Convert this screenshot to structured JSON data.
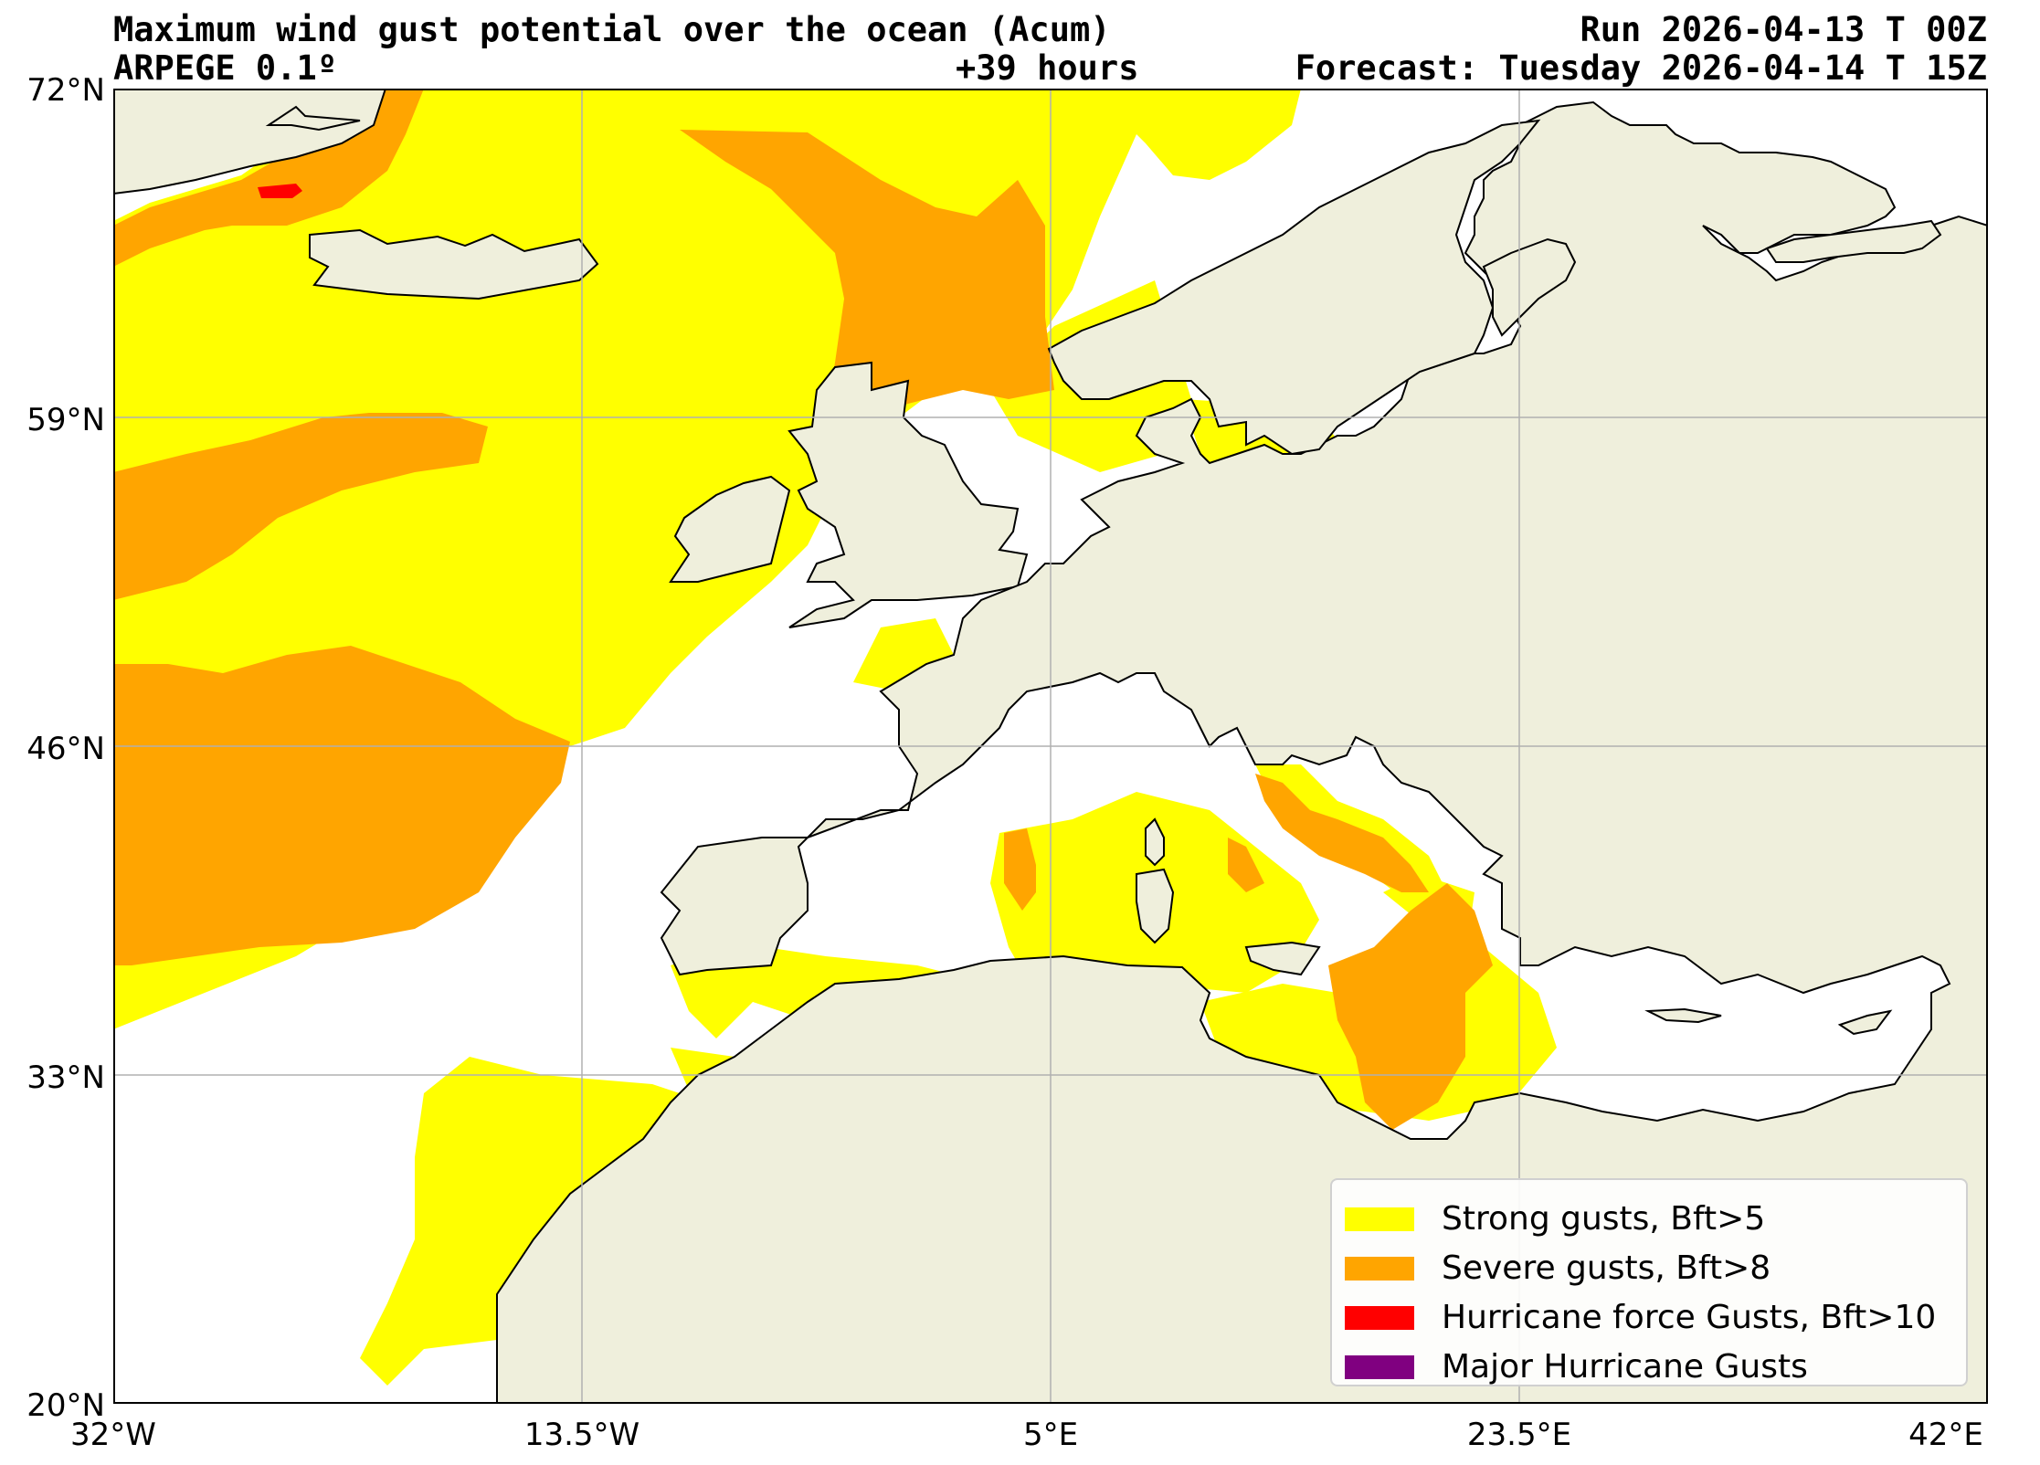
{
  "header": {
    "title": "Maximum wind gust potential over the ocean (Acum)",
    "model": "ARPEGE 0.1º",
    "lead_time": "+39 hours",
    "run": "Run 2026-04-13 T 00Z",
    "forecast": "Forecast: Tuesday 2026-04-14 T 15Z"
  },
  "axes": {
    "lat_ticks": [
      "72°N",
      "59°N",
      "46°N",
      "33°N",
      "20°N"
    ],
    "lon_ticks": [
      "32°W",
      "13.5°W",
      "5°E",
      "23.5°E",
      "42°E"
    ],
    "lat_range": [
      20,
      72
    ],
    "lon_range": [
      -32,
      42
    ],
    "grid": true
  },
  "colors": {
    "land": "#efefdc",
    "ocean": "#ffffff",
    "strong": "#ffff00",
    "severe": "#ffa500",
    "hurricane": "#ff0000",
    "major": "#800080",
    "grid": "#b0b0b0"
  },
  "legend": {
    "items": [
      {
        "label": "Strong gusts, Bft>5",
        "color": "#ffff00"
      },
      {
        "label": "Severe gusts, Bft>8",
        "color": "#ffa500"
      },
      {
        "label": "Hurricane force Gusts, Bft>10",
        "color": "#ff0000"
      },
      {
        "label": "Major Hurricane Gusts",
        "color": "#800080"
      }
    ]
  }
}
